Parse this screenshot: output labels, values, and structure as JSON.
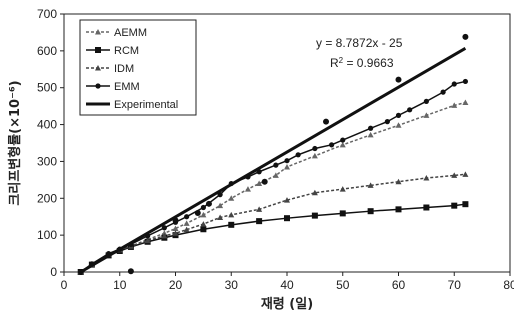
{
  "chart_data": {
    "type": "line",
    "xlabel": "재령 (일)",
    "ylabel": "크리프변형률(×10⁻⁶)",
    "xlim": [
      0,
      80
    ],
    "ylim": [
      0,
      700
    ],
    "x_ticks": [
      "0",
      "10",
      "20",
      "30",
      "40",
      "50",
      "60",
      "70",
      "80"
    ],
    "y_ticks": [
      "0",
      "100",
      "200",
      "300",
      "400",
      "500",
      "600",
      "700"
    ],
    "grid": false,
    "legend_position": "top-left",
    "annotation": {
      "equation": "y = 8.7872x - 25",
      "r2_label": "R",
      "r2_sup": "2",
      "r2_value": " = 0.9663"
    },
    "series": [
      {
        "name": "AEMM",
        "color": "#666666",
        "marker": "triangle",
        "dashed": true,
        "x": [
          3,
          5,
          8,
          10,
          12,
          15,
          18,
          20,
          22,
          25,
          28,
          30,
          33,
          35,
          38,
          40,
          45,
          50,
          55,
          60,
          65,
          70,
          72
        ],
        "y": [
          0,
          20,
          45,
          58,
          70,
          88,
          105,
          118,
          132,
          155,
          180,
          200,
          225,
          240,
          262,
          285,
          315,
          345,
          372,
          398,
          425,
          452,
          460
        ]
      },
      {
        "name": "RCM",
        "color": "#111111",
        "marker": "square",
        "dashed": false,
        "x": [
          3,
          5,
          8,
          10,
          12,
          15,
          18,
          20,
          25,
          30,
          35,
          40,
          45,
          50,
          55,
          60,
          65,
          70,
          72
        ],
        "y": [
          0,
          20,
          45,
          57,
          68,
          82,
          93,
          100,
          116,
          128,
          138,
          146,
          153,
          159,
          165,
          170,
          175,
          180,
          184
        ]
      },
      {
        "name": "IDM",
        "color": "#444444",
        "marker": "triangle",
        "dashed": true,
        "x": [
          3,
          5,
          8,
          10,
          12,
          15,
          18,
          20,
          22,
          25,
          28,
          30,
          35,
          40,
          45,
          50,
          55,
          60,
          65,
          70,
          72
        ],
        "y": [
          0,
          20,
          48,
          60,
          70,
          85,
          98,
          105,
          115,
          130,
          148,
          155,
          170,
          195,
          215,
          225,
          235,
          245,
          255,
          262,
          265
        ]
      },
      {
        "name": "EMM",
        "color": "#111111",
        "marker": "circle",
        "dashed": false,
        "x": [
          3,
          5,
          8,
          10,
          12,
          15,
          18,
          20,
          22,
          25,
          28,
          30,
          33,
          35,
          38,
          40,
          42,
          45,
          48,
          50,
          55,
          58,
          60,
          62,
          65,
          68,
          70,
          72
        ],
        "y": [
          0,
          22,
          50,
          62,
          75,
          98,
          120,
          135,
          150,
          175,
          210,
          240,
          258,
          272,
          290,
          302,
          318,
          335,
          345,
          358,
          390,
          408,
          425,
          440,
          463,
          488,
          510,
          517
        ]
      },
      {
        "name": "Experimental",
        "color": "#111111",
        "marker": "none",
        "dashed": false,
        "linewidth": 3,
        "x": [
          3,
          72
        ],
        "y": [
          0,
          607
        ]
      }
    ],
    "scatter_points": {
      "x": [
        12,
        20,
        24,
        26,
        36,
        47,
        60,
        72
      ],
      "y": [
        2,
        140,
        160,
        185,
        245,
        408,
        522,
        638
      ]
    }
  }
}
